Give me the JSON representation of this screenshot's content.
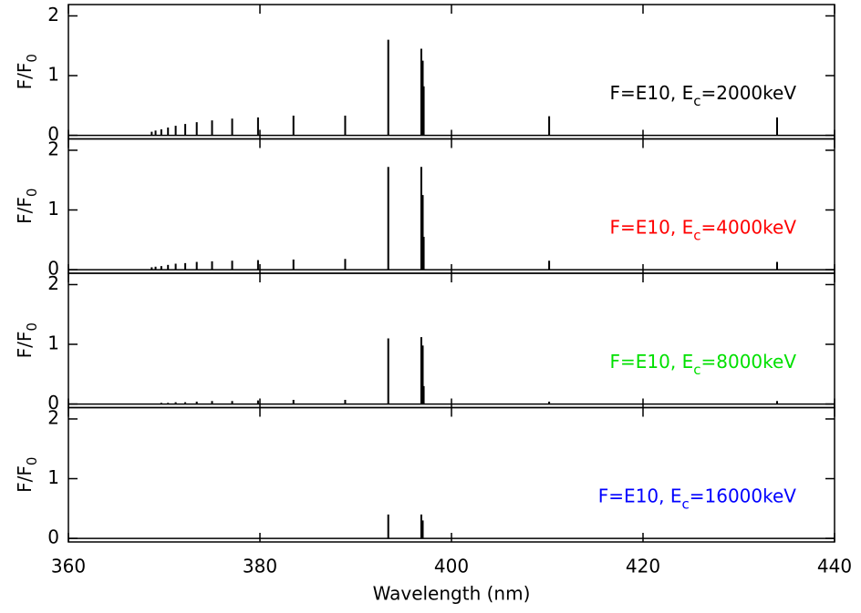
{
  "chart_data": [
    {
      "type": "stem",
      "ylabel": [
        "F/F",
        "0"
      ],
      "annotation": [
        "F=E10, E",
        "c",
        "=2000keV"
      ],
      "annotation_color": "#000000",
      "color": "#000000",
      "x": [
        368.7,
        369.1,
        369.7,
        370.4,
        371.2,
        372.2,
        373.4,
        375.0,
        377.1,
        379.8,
        383.5,
        388.9,
        393.4,
        396.85,
        397.0,
        397.1,
        410.2,
        434.0
      ],
      "values": [
        0.06,
        0.08,
        0.1,
        0.13,
        0.16,
        0.19,
        0.22,
        0.25,
        0.28,
        0.3,
        0.33,
        0.33,
        1.6,
        1.45,
        1.25,
        0.82,
        0.32,
        0.3
      ],
      "xlim": [
        360,
        440
      ],
      "xticks": [
        360,
        380,
        400,
        420,
        440
      ],
      "show_xtick_labels": false,
      "ylim": [
        -0.06,
        2.19
      ],
      "yticks": [
        0,
        1,
        2
      ]
    },
    {
      "type": "stem",
      "ylabel": [
        "F/F",
        "0"
      ],
      "annotation": [
        "F=E10, E",
        "c",
        "=4000keV"
      ],
      "annotation_color": "#ff0000",
      "color": "#000000",
      "x": [
        368.7,
        369.1,
        369.7,
        370.4,
        371.2,
        372.2,
        373.4,
        375.0,
        377.1,
        379.8,
        383.5,
        388.9,
        393.4,
        396.85,
        397.0,
        397.1,
        410.2,
        434.0
      ],
      "values": [
        0.04,
        0.05,
        0.06,
        0.08,
        0.1,
        0.11,
        0.13,
        0.14,
        0.15,
        0.16,
        0.17,
        0.18,
        1.72,
        1.72,
        1.25,
        0.55,
        0.15,
        0.13
      ],
      "xlim": [
        360,
        440
      ],
      "xticks": [
        360,
        380,
        400,
        420,
        440
      ],
      "show_xtick_labels": false,
      "ylim": [
        -0.06,
        2.19
      ],
      "yticks": [
        0,
        1,
        2
      ]
    },
    {
      "type": "stem",
      "ylabel": [
        "F/F",
        "0"
      ],
      "annotation": [
        "F=E10, E",
        "c",
        "=8000keV"
      ],
      "annotation_color": "#00e000",
      "color": "#000000",
      "x": [
        369.7,
        370.4,
        371.2,
        372.2,
        373.4,
        375.0,
        377.1,
        379.8,
        383.5,
        388.9,
        393.4,
        396.85,
        397.0,
        397.1,
        410.2,
        434.0
      ],
      "values": [
        0.02,
        0.02,
        0.03,
        0.03,
        0.04,
        0.05,
        0.05,
        0.06,
        0.07,
        0.07,
        1.1,
        1.12,
        0.98,
        0.3,
        0.04,
        0.05
      ],
      "xlim": [
        360,
        440
      ],
      "xticks": [
        360,
        380,
        400,
        420,
        440
      ],
      "show_xtick_labels": false,
      "ylim": [
        -0.06,
        2.19
      ],
      "yticks": [
        0,
        1,
        2
      ]
    },
    {
      "type": "stem",
      "ylabel": [
        "F/F",
        "0"
      ],
      "annotation": [
        "F=E10, E",
        "c",
        "=16000keV"
      ],
      "annotation_color": "#0000ff",
      "color": "#000000",
      "x": [
        393.4,
        396.85,
        397.0
      ],
      "values": [
        0.4,
        0.4,
        0.3
      ],
      "xlim": [
        360,
        440
      ],
      "xticks": [
        360,
        380,
        400,
        420,
        440
      ],
      "show_xtick_labels": true,
      "xlabel": "Wavelength (nm)",
      "ylim": [
        -0.06,
        2.19
      ],
      "yticks": [
        0,
        1,
        2
      ]
    }
  ]
}
